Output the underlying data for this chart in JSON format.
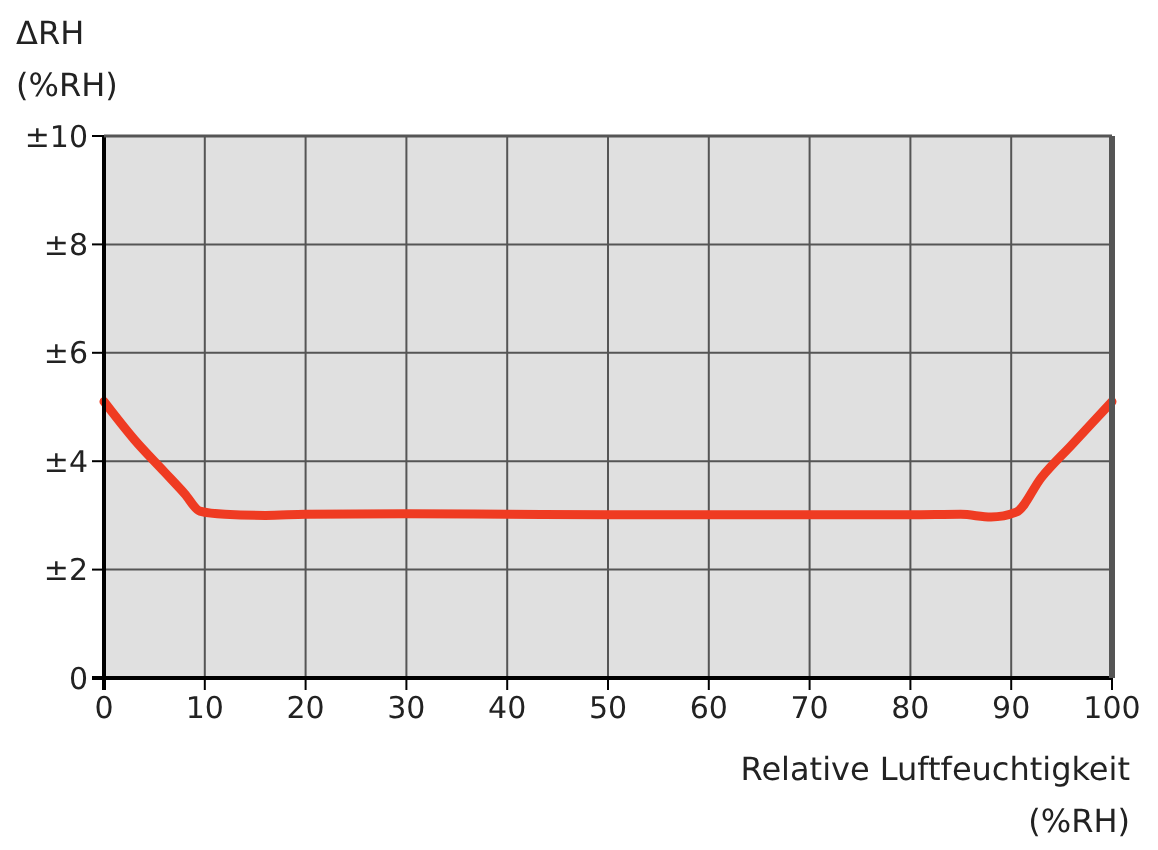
{
  "chart_data": {
    "type": "line",
    "ylabel": "ΔRH\n(%RH)",
    "xlabel": "Relative Luftfeuchtigkeit\n(%RH)",
    "xlim": [
      0,
      100
    ],
    "xticks": [
      0,
      10,
      20,
      30,
      40,
      50,
      60,
      70,
      80,
      90,
      100
    ],
    "ylim": [
      0,
      10
    ],
    "yticks": [
      0,
      {
        "value": 2,
        "label": "±2"
      },
      {
        "value": 4,
        "label": "±4"
      },
      {
        "value": 6,
        "label": "±6"
      },
      {
        "value": 8,
        "label": "±8"
      },
      {
        "value": 10,
        "label": "±10"
      }
    ],
    "grid": true,
    "series": [
      {
        "color": "#ef3b22",
        "x": [
          0,
          3,
          6,
          8,
          9.5,
          12,
          16,
          20,
          30,
          40,
          50,
          60,
          70,
          80,
          85,
          88,
          90.5,
          93,
          96,
          100
        ],
        "values": [
          5.1,
          4.4,
          3.8,
          3.4,
          3.08,
          3.02,
          3.0,
          3.02,
          3.03,
          3.02,
          3.01,
          3.01,
          3.01,
          3.01,
          3.02,
          2.97,
          3.06,
          3.7,
          4.3,
          5.1
        ]
      }
    ]
  }
}
